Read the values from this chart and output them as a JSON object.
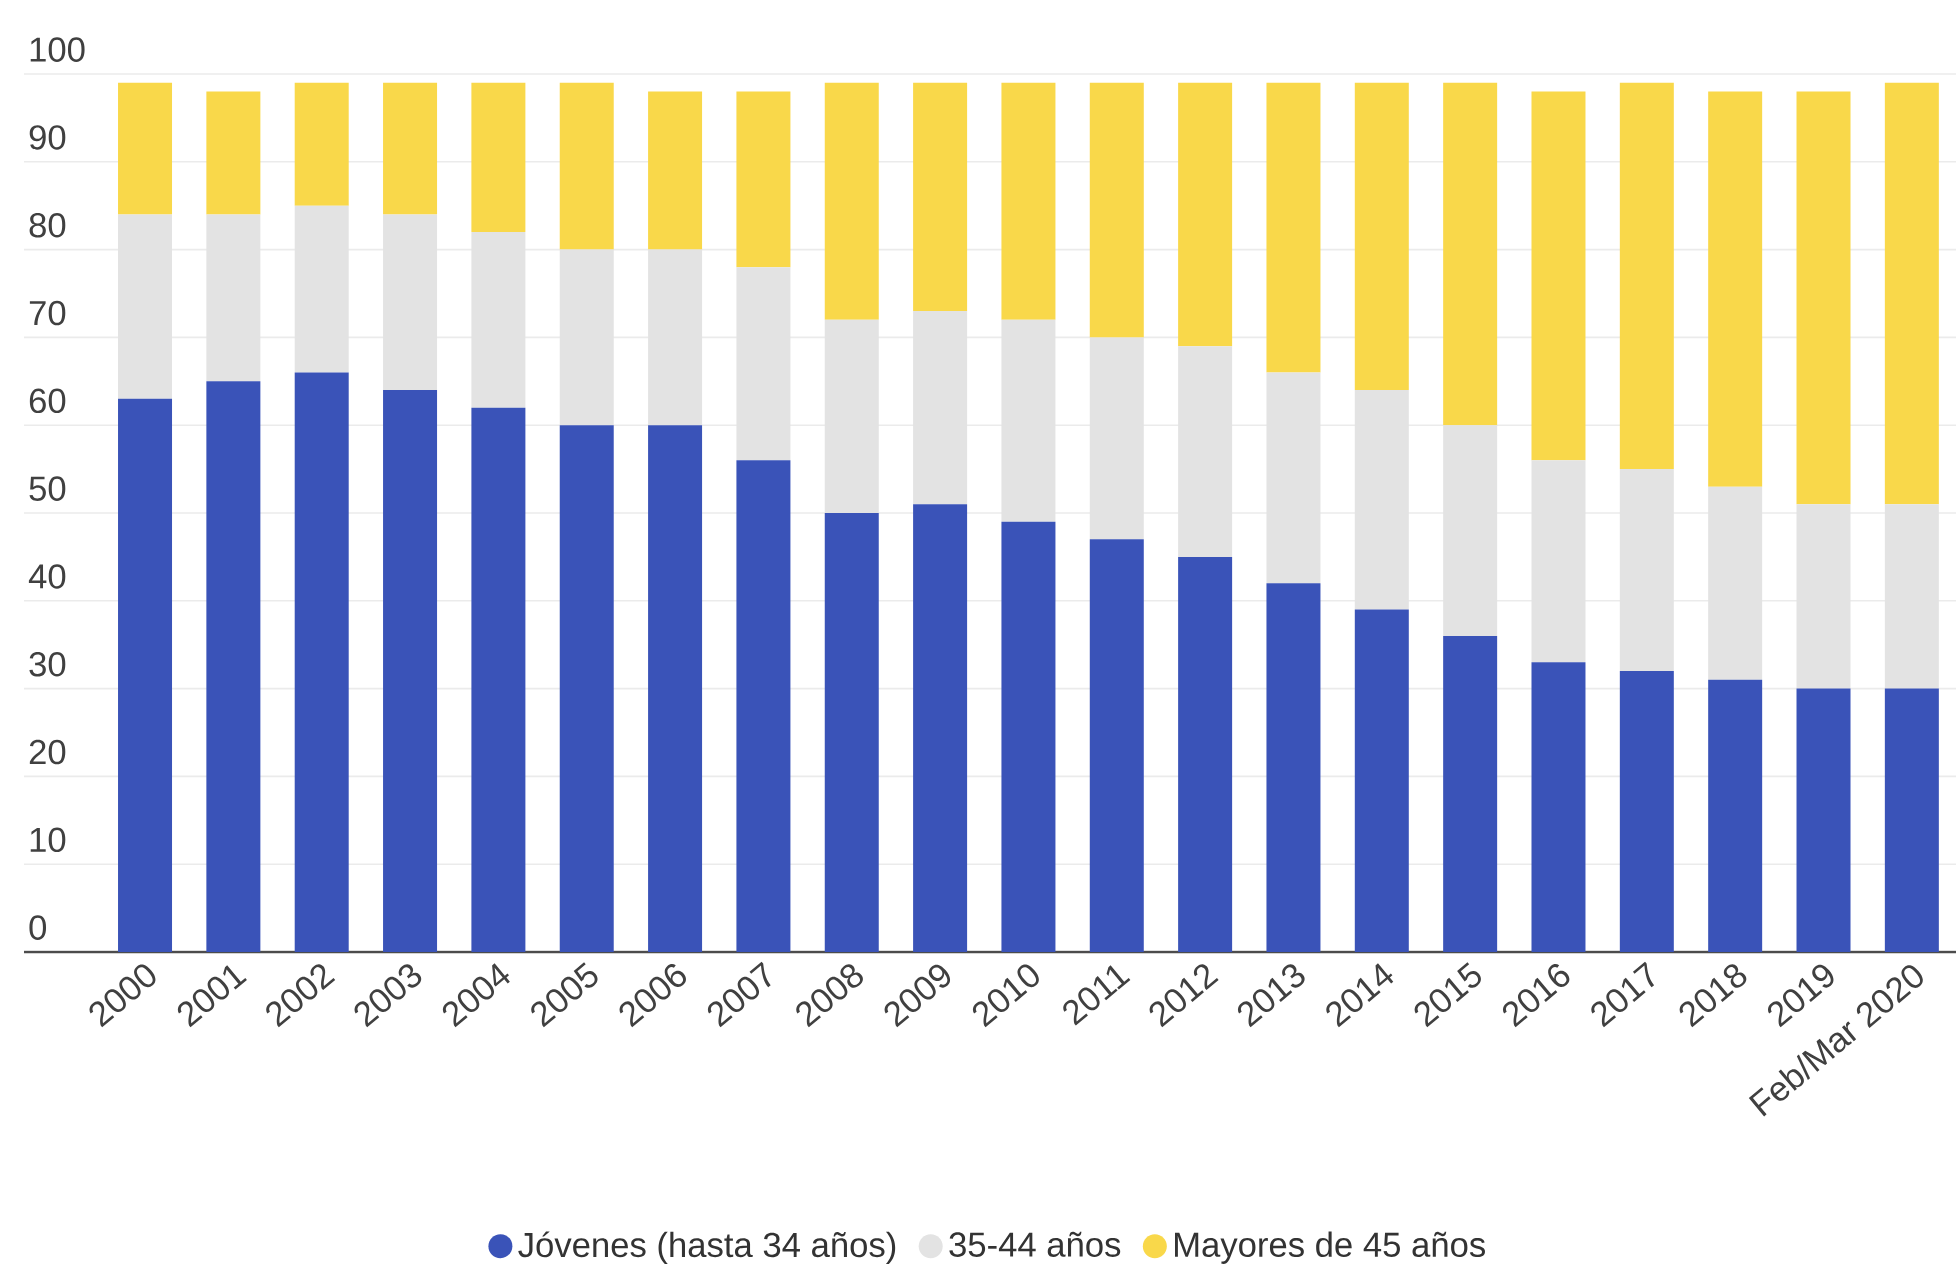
{
  "chart_data": {
    "type": "bar",
    "stacked": true,
    "categories": [
      "2000",
      "2001",
      "2002",
      "2003",
      "2004",
      "2005",
      "2006",
      "2007",
      "2008",
      "2009",
      "2010",
      "2011",
      "2012",
      "2013",
      "2014",
      "2015",
      "2016",
      "2017",
      "2018",
      "2019",
      "Feb/Mar 2020"
    ],
    "series": [
      {
        "name": "Jóvenes (hasta 34 años)",
        "color": "#3a53b8",
        "values": [
          63,
          65,
          66,
          64,
          62,
          60,
          60,
          56,
          50,
          51,
          49,
          47,
          45,
          42,
          39,
          36,
          33,
          32,
          31,
          30,
          30
        ]
      },
      {
        "name": "35-44 años",
        "color": "#e3e3e3",
        "values": [
          21,
          19,
          19,
          20,
          20,
          20,
          20,
          22,
          22,
          22,
          23,
          23,
          24,
          24,
          25,
          24,
          23,
          23,
          22,
          21,
          21
        ]
      },
      {
        "name": "Mayores de 45 años",
        "color": "#f9d84a",
        "values": [
          15,
          14,
          14,
          15,
          17,
          19,
          18,
          20,
          27,
          26,
          27,
          29,
          30,
          33,
          35,
          39,
          42,
          44,
          45,
          47,
          48
        ]
      }
    ],
    "ylim": [
      0,
      100
    ],
    "yticks": [
      0,
      10,
      20,
      30,
      40,
      50,
      60,
      70,
      80,
      90,
      100
    ],
    "grid": "y",
    "legend": "bottom"
  }
}
